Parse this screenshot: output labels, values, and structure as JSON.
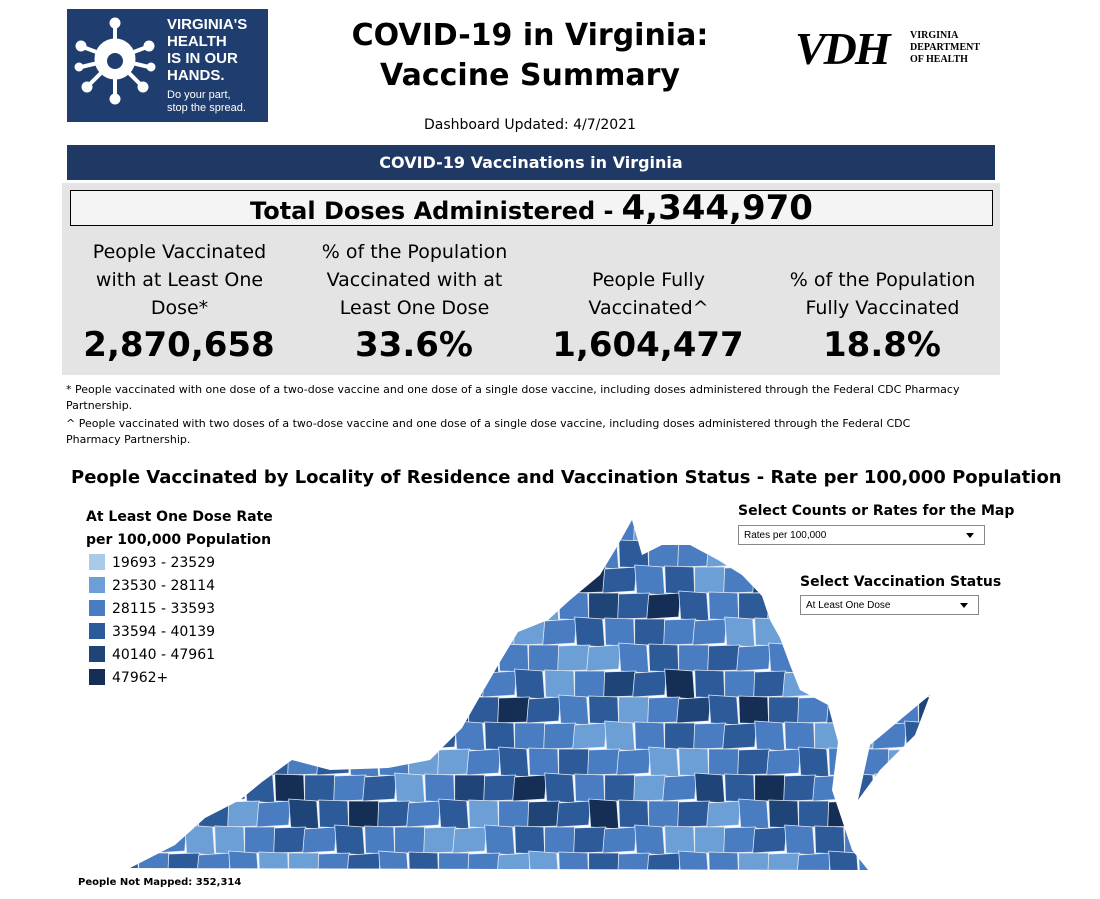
{
  "logo": {
    "lines": [
      "VIRGINIA'S",
      "HEALTH",
      "IS IN OUR",
      "HANDS."
    ],
    "tagline": [
      "Do your part,",
      "stop the spread."
    ]
  },
  "header": {
    "title_lines": [
      "COVID-19 in Virginia:",
      "Vaccine Summary"
    ],
    "updated": "Dashboard Updated: 4/7/2021"
  },
  "vdh": {
    "mark": "VDH",
    "name_lines": [
      "VIRGINIA",
      "DEPARTMENT",
      "OF HEALTH"
    ]
  },
  "banner": "COVID-19 Vaccinations in Virginia",
  "total": {
    "label": "Total Doses Administered -",
    "value": "4,344,970"
  },
  "kpis": [
    {
      "label": "People Vaccinated with at Least One Dose*",
      "value": "2,870,658"
    },
    {
      "label": "% of the Population Vaccinated with at Least One Dose",
      "value": "33.6%"
    },
    {
      "label": "People Fully Vaccinated^",
      "value": "1,604,477"
    },
    {
      "label": "% of the Population Fully Vaccinated",
      "value": "18.8%"
    }
  ],
  "footnotes": [
    "* People vaccinated with one dose of a two-dose vaccine and one dose of a single dose vaccine, including doses administered through the Federal CDC Pharmacy Partnership.",
    "^ People vaccinated with two doses of a two-dose vaccine and one dose of a single dose vaccine, including doses administered through the Federal CDC Pharmacy Partnership."
  ],
  "map": {
    "title": "People Vaccinated by Locality of Residence and Vaccination Status - Rate per 100,000 Population",
    "legend": {
      "title": "At Least One Dose Rate per 100,000 Population",
      "items": [
        {
          "label": "19693 - 23529",
          "color": "#a9cbe9"
        },
        {
          "label": "23530 - 28114",
          "color": "#6d9fd7"
        },
        {
          "label": "28115 - 33593",
          "color": "#4a7cc2"
        },
        {
          "label": "33594 - 40139",
          "color": "#2d5a99"
        },
        {
          "label": "40140 - 47961",
          "color": "#1f4478"
        },
        {
          "label": "47962+",
          "color": "#152e55"
        }
      ]
    },
    "controls": [
      {
        "label": "Select Counts or Rates for the Map",
        "value": "Rates per 100,000"
      },
      {
        "label": "Select Vaccination Status",
        "value": "At Least One Dose"
      }
    ],
    "not_mapped": "People Not Mapped: 352,314"
  }
}
